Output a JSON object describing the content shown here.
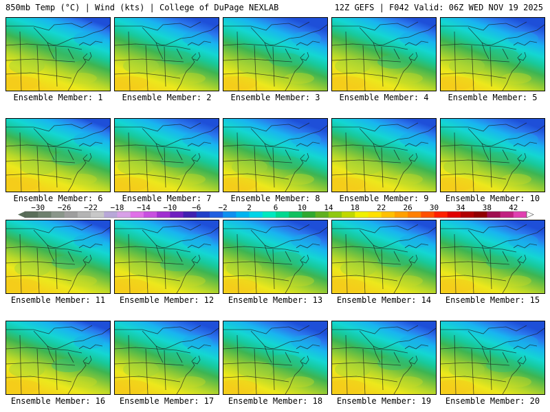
{
  "header": {
    "left": "850mb Temp (°C) | Wind (kts) | College of DuPage NEXLAB",
    "right": "12Z GEFS | F042 Valid: 06Z WED NOV 19 2025"
  },
  "member_label_prefix": "Ensemble Member: ",
  "members": [
    1,
    2,
    3,
    4,
    5,
    6,
    7,
    8,
    9,
    10,
    11,
    12,
    13,
    14,
    15,
    16,
    17,
    18,
    19,
    20
  ],
  "colorbar": {
    "tick_labels": [
      "−30",
      "−26",
      "−22",
      "−18",
      "−14",
      "−10",
      "−6",
      "−2",
      "2",
      "6",
      "10",
      "14",
      "18",
      "22",
      "26",
      "30",
      "34",
      "38",
      "42"
    ],
    "min": -32,
    "max": 44,
    "step": 2,
    "colors": [
      "#5a6e5a",
      "#6e806e",
      "#8a968a",
      "#9e9e9e",
      "#b4b4b4",
      "#c8c8c8",
      "#b8a8d8",
      "#d8a0e8",
      "#e070e8",
      "#c850e0",
      "#a030d0",
      "#7020c0",
      "#4020b0",
      "#2040c8",
      "#2060e0",
      "#1090f0",
      "#00b4f0",
      "#00d4e8",
      "#00e8c0",
      "#00d890",
      "#10c060",
      "#30a830",
      "#60b020",
      "#90c810",
      "#c0d800",
      "#f0f000",
      "#ffe000",
      "#ffc000",
      "#ffa000",
      "#ff8000",
      "#ff5000",
      "#ff2000",
      "#e00000",
      "#b00000",
      "#900000",
      "#a01050",
      "#c02080",
      "#e040b0",
      "#f070d0",
      "#f8a0e0",
      "#f8c8f0"
    ]
  }
}
